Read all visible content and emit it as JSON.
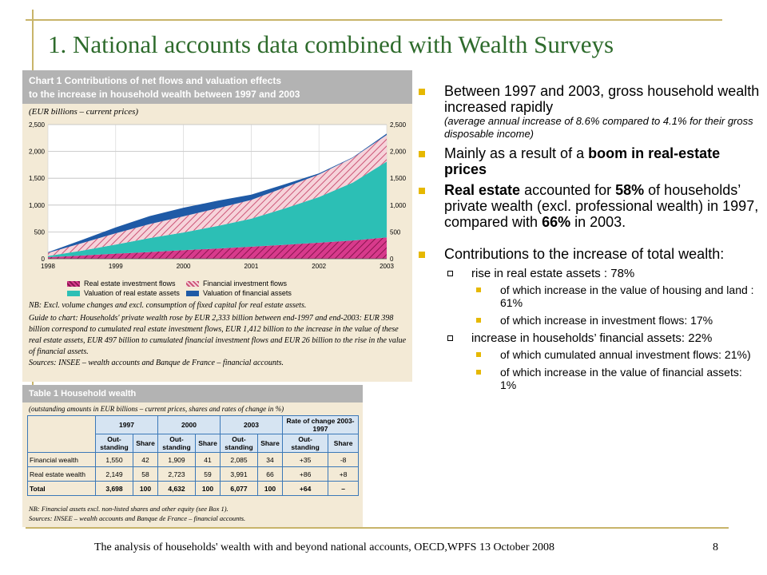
{
  "slide": {
    "title": "1. National accounts data combined with Wealth Surveys",
    "footer": "The analysis of households' wealth with and beyond national accounts, OECD,WPFS 13 October 2008",
    "page_number": "8"
  },
  "chart_panel": {
    "header_line1": "Chart 1  Contributions of net flows and valuation effects",
    "header_line2": "to the increase in household wealth between 1997 and 2003",
    "unit_label": "(EUR billions – current prices)",
    "notes": [
      "NB: Excl. volume changes and excl. consumption of fixed capital for real estate assets.",
      "Guide to chart: Households' private wealth rose by EUR 2,333 billion between end-1997 and end-2003: EUR 398 billion correspond to cumulated real estate investment flows, EUR 1,412 billion to the increase in the value of these real estate assets, EUR 497 billion to cumulated financial investment flows and EUR 26 billion to the rise in the value of financial assets.",
      "Sources: INSEE – wealth accounts and Banque de France – financial accounts."
    ]
  },
  "chart_data": {
    "type": "area",
    "stacked": true,
    "x": [
      1998,
      1998.5,
      1999,
      1999.5,
      2000,
      2000.5,
      2001,
      2001.5,
      2002,
      2002.5,
      2003
    ],
    "x_ticks": [
      "1998",
      "1999",
      "2000",
      "2001",
      "2002",
      "2003"
    ],
    "y_ticks": [
      "0",
      "500",
      "1,000",
      "1,500",
      "2,000",
      "2,500"
    ],
    "ylim": [
      0,
      2500
    ],
    "grid": true,
    "legend_position": "bottom",
    "colors": {
      "real_estate_investment": "#c8297a",
      "real_estate_valuation": "#2cbfb5",
      "financial_investment": "#f1b0c0",
      "financial_valuation": "#1f5aa6"
    },
    "series": [
      {
        "name": "Real estate investment flows",
        "key": "real_estate_investment",
        "values": [
          30,
          60,
          95,
          125,
          160,
          190,
          225,
          260,
          300,
          340,
          398
        ]
      },
      {
        "name": "Valuation of real estate assets",
        "key": "real_estate_valuation",
        "values": [
          20,
          90,
          170,
          260,
          330,
          420,
          520,
          680,
          850,
          1080,
          1412
        ]
      },
      {
        "name": "Financial investment flows",
        "key": "financial_investment",
        "values": [
          60,
          140,
          210,
          260,
          300,
          330,
          350,
          390,
          420,
          460,
          497
        ]
      },
      {
        "name": "Valuation of financial assets",
        "key": "financial_valuation",
        "values": [
          10,
          60,
          110,
          150,
          160,
          140,
          100,
          60,
          20,
          10,
          26
        ]
      }
    ]
  },
  "table_panel": {
    "title": "Table 1  Household wealth",
    "subtitle": "(outstanding amounts in EUR billions – current prices, shares and rates of change in %)",
    "col_groups": [
      "1997",
      "2000",
      "2003",
      "Rate of change 2003-1997"
    ],
    "sub_headers": [
      "Out-standing",
      "Share",
      "Out-standing",
      "Share",
      "Out-standing",
      "Share",
      "Out-standing",
      "Share"
    ],
    "rows": [
      {
        "label": "Financial wealth",
        "cells": [
          "1,550",
          "42",
          "1,909",
          "41",
          "2,085",
          "34",
          "+35",
          "-8"
        ]
      },
      {
        "label": "Real estate wealth",
        "cells": [
          "2,149",
          "58",
          "2,723",
          "59",
          "3,991",
          "66",
          "+86",
          "+8"
        ]
      },
      {
        "label": "Total",
        "cells": [
          "3,698",
          "100",
          "4,632",
          "100",
          "6,077",
          "100",
          "+64",
          "–"
        ]
      }
    ],
    "note1": "NB: Financial assets excl. non-listed shares and other equity (see Box 1).",
    "note2": "Sources: INSEE – wealth accounts and Banque de France – financial accounts."
  },
  "bullets": {
    "b1_text": "Between 1997 and 2003, gross household wealth increased rapidly",
    "b1_small": "(average annual increase of 8.6% compared to 4.1% for their gross disposable income)",
    "b2_prefix": "Mainly as a result of a ",
    "b2_bold": "boom in real-estate prices",
    "b3_bold1": "Real estate",
    "b3_mid1": " accounted for ",
    "b3_bold2": "58%",
    "b3_mid2": " of households’ private wealth (excl. professional wealth) in 1997, compared with ",
    "b3_bold3": "66%",
    "b3_end": " in 2003.",
    "b4_text": "Contributions to the increase of total wealth:",
    "s1": "rise in real estate assets : 78%",
    "s1a": "of which increase in the value of housing and land : 61%",
    "s1b": "of which increase in investment flows: 17%",
    "s2": "increase in households’ financial assets: 22%",
    "s2a": "of which cumulated annual investment flows: 21%)",
    "s2b": "of which increase in the value of financial assets: 1%"
  }
}
